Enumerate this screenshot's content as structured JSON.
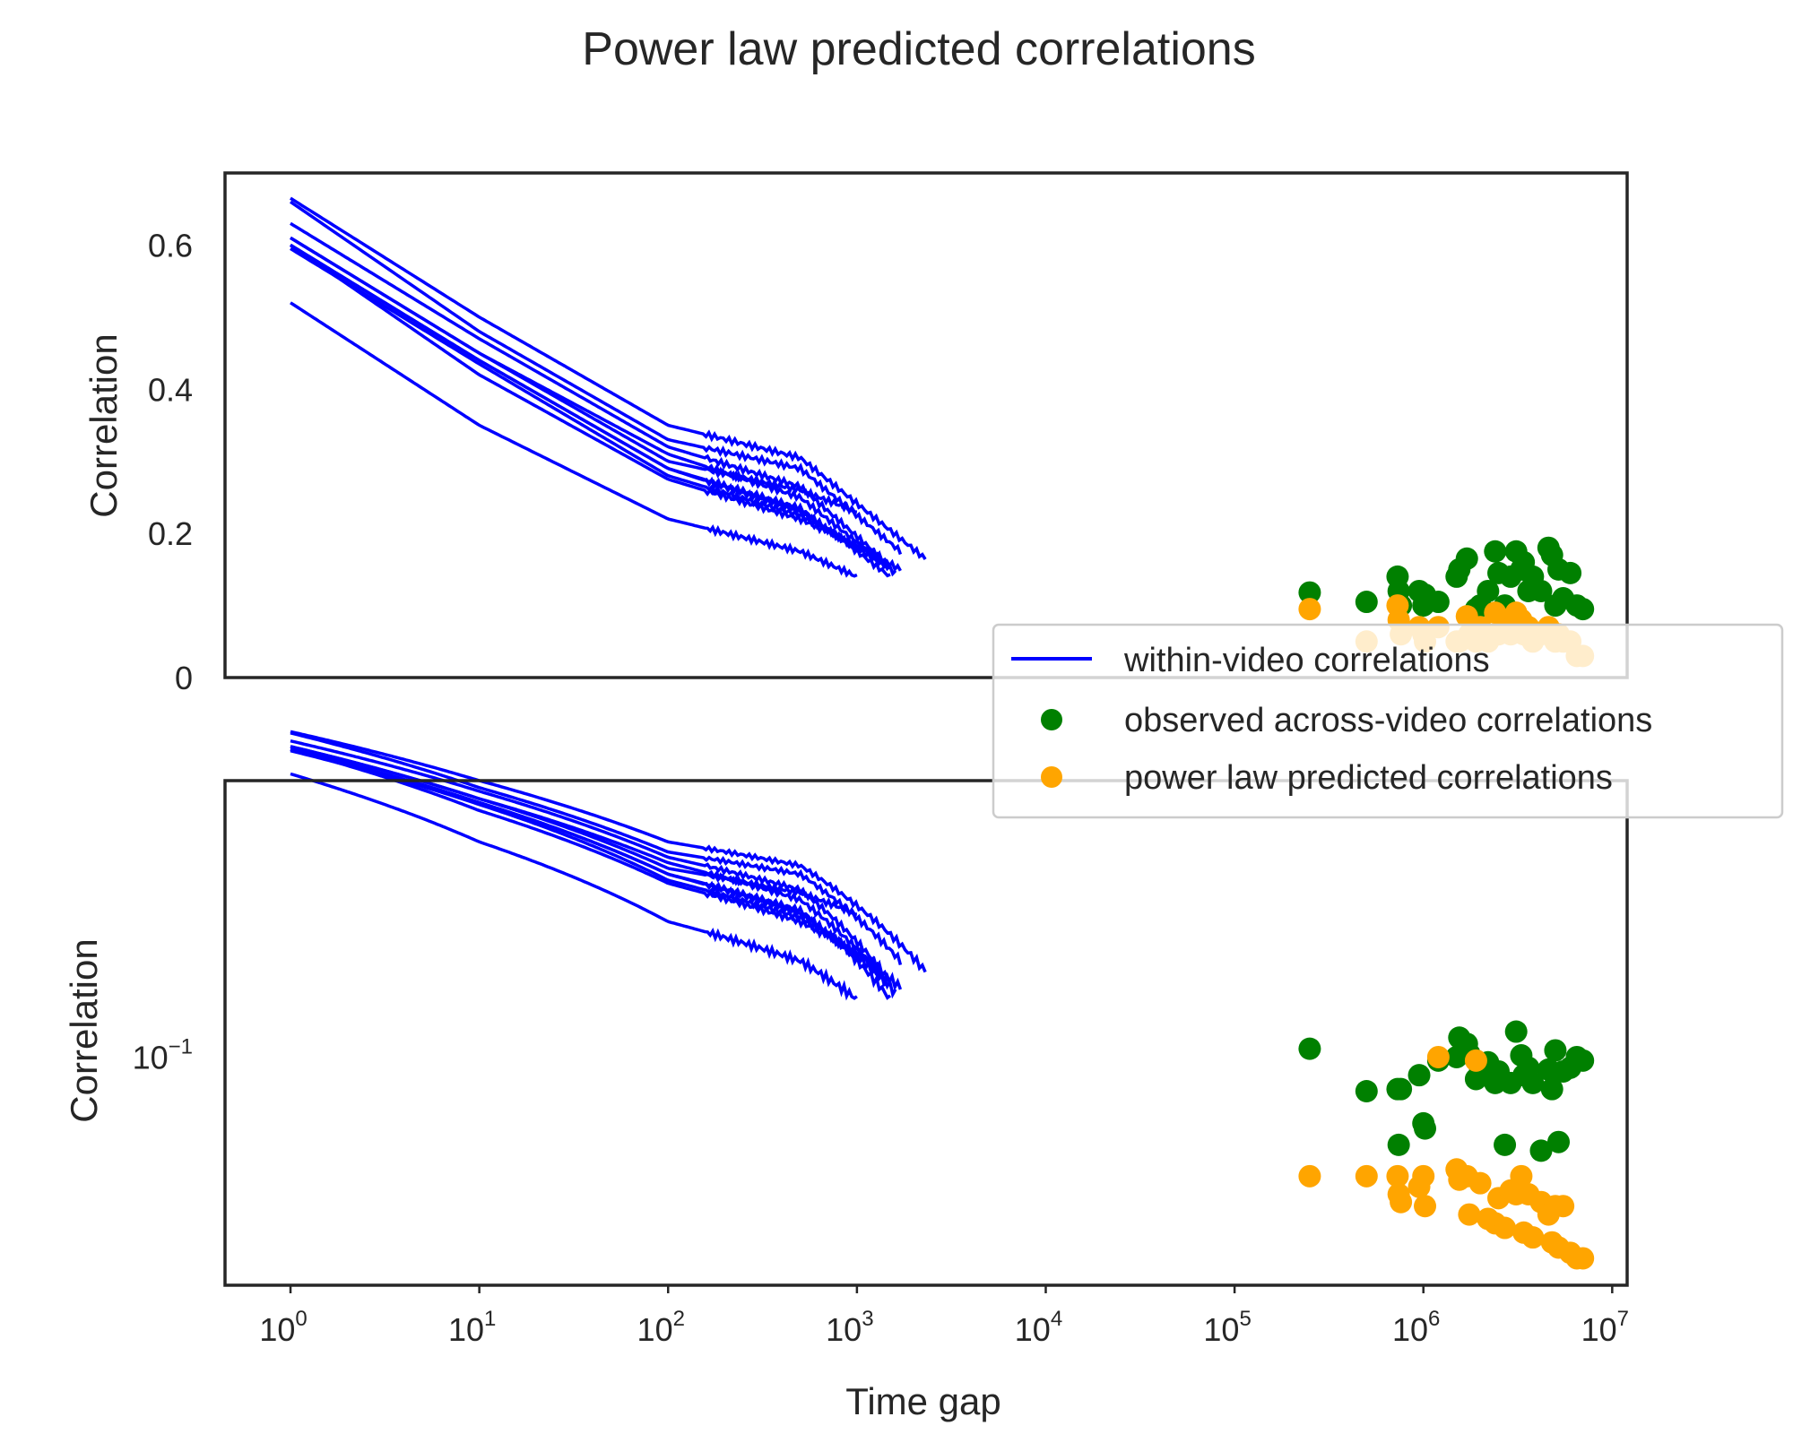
{
  "chart_data": {
    "type": "line",
    "title": "Power law predicted correlations",
    "xlabel": "Time gap",
    "x_scale": "log",
    "xlim": [
      0.45,
      12000000
    ],
    "x_ticks": [
      1,
      10,
      100,
      1000,
      10000,
      100000,
      1000000,
      10000000
    ],
    "x_tick_labels": [
      {
        "base": "10",
        "exp": "0"
      },
      {
        "base": "10",
        "exp": "1"
      },
      {
        "base": "10",
        "exp": "2"
      },
      {
        "base": "10",
        "exp": "3"
      },
      {
        "base": "10",
        "exp": "4"
      },
      {
        "base": "10",
        "exp": "5"
      },
      {
        "base": "10",
        "exp": "6"
      },
      {
        "base": "10",
        "exp": "7"
      }
    ],
    "legend": {
      "placement": "right",
      "entries": [
        {
          "label": "within-video correlations",
          "kind": "line",
          "color": "#0000ff"
        },
        {
          "label": "observed across-video correlations",
          "kind": "dot",
          "color": "#008000"
        },
        {
          "label": "power law predicted correlations",
          "kind": "dot",
          "color": "#ffa500"
        }
      ]
    },
    "colors": {
      "within": "#0000ff",
      "observed": "#008000",
      "predicted": "#ffa500"
    },
    "panels": [
      {
        "ylabel": "Correlation",
        "y_scale": "linear",
        "ylim": [
          0,
          0.7
        ],
        "y_ticks": [
          0,
          0.2,
          0.4,
          0.6
        ],
        "y_tick_labels": [
          "0",
          "0.2",
          "0.4",
          "0.6"
        ]
      },
      {
        "ylabel": "Correlation",
        "y_scale": "log",
        "ylim": [
          0.0265,
          0.5
        ],
        "y_ticks": [
          0.1
        ],
        "y_tick_labels": [
          {
            "base": "10",
            "exp": "−1"
          }
        ]
      }
    ],
    "within_video_series": [
      {
        "x_max": 2300,
        "values": [
          [
            1,
            0.665
          ],
          [
            10,
            0.5
          ],
          [
            100,
            0.35
          ],
          [
            500,
            0.305
          ],
          [
            2300,
            0.165
          ]
        ]
      },
      {
        "x_max": 1700,
        "values": [
          [
            1,
            0.66
          ],
          [
            10,
            0.48
          ],
          [
            100,
            0.33
          ],
          [
            500,
            0.29
          ],
          [
            1700,
            0.175
          ]
        ]
      },
      {
        "x_max": 1500,
        "values": [
          [
            1,
            0.63
          ],
          [
            10,
            0.47
          ],
          [
            100,
            0.32
          ],
          [
            500,
            0.265
          ],
          [
            1500,
            0.155
          ]
        ]
      },
      {
        "x_max": 1600,
        "values": [
          [
            1,
            0.61
          ],
          [
            10,
            0.45
          ],
          [
            100,
            0.31
          ],
          [
            500,
            0.25
          ],
          [
            1600,
            0.145
          ]
        ]
      },
      {
        "x_max": 1500,
        "values": [
          [
            1,
            0.6
          ],
          [
            10,
            0.44
          ],
          [
            100,
            0.29
          ],
          [
            500,
            0.235
          ],
          [
            1500,
            0.14
          ]
        ]
      },
      {
        "x_max": 1700,
        "values": [
          [
            1,
            0.595
          ],
          [
            10,
            0.435
          ],
          [
            100,
            0.28
          ],
          [
            500,
            0.225
          ],
          [
            1700,
            0.15
          ]
        ]
      },
      {
        "x_max": 1400,
        "values": [
          [
            1,
            0.6
          ],
          [
            10,
            0.44
          ],
          [
            100,
            0.29
          ],
          [
            500,
            0.23
          ],
          [
            1400,
            0.155
          ]
        ]
      },
      {
        "x_max": 1000,
        "values": [
          [
            1,
            0.61
          ],
          [
            10,
            0.45
          ],
          [
            100,
            0.3
          ],
          [
            500,
            0.26
          ],
          [
            1000,
            0.23
          ]
        ]
      },
      {
        "x_max": 1300,
        "values": [
          [
            1,
            0.6
          ],
          [
            10,
            0.42
          ],
          [
            100,
            0.275
          ],
          [
            500,
            0.22
          ],
          [
            1300,
            0.17
          ]
        ]
      },
      {
        "x_max": 1000,
        "values": [
          [
            1,
            0.52
          ],
          [
            10,
            0.35
          ],
          [
            100,
            0.22
          ],
          [
            500,
            0.175
          ],
          [
            1000,
            0.14
          ]
        ]
      }
    ],
    "across_video_points": [
      {
        "x": 250000,
        "observed_top": 0.118,
        "observed_bottom": 0.105,
        "predicted_top": 0.095,
        "predicted_bottom": 0.05
      },
      {
        "x": 500000,
        "observed_top": 0.105,
        "observed_bottom": 0.082,
        "predicted_top": 0.05,
        "predicted_bottom": 0.05
      },
      {
        "x": 730000,
        "observed_top": 0.14,
        "observed_bottom": 0.083,
        "predicted_top": 0.1,
        "predicted_bottom": 0.05
      },
      {
        "x": 740000,
        "observed_top": 0.12,
        "observed_bottom": 0.06,
        "predicted_top": 0.08,
        "predicted_bottom": 0.045
      },
      {
        "x": 760000,
        "observed_top": 0.1,
        "observed_bottom": 0.083,
        "predicted_top": 0.06,
        "predicted_bottom": 0.043
      },
      {
        "x": 950000,
        "observed_top": 0.12,
        "observed_bottom": 0.09,
        "predicted_top": 0.07,
        "predicted_bottom": 0.047
      },
      {
        "x": 1000000,
        "observed_top": 0.1,
        "observed_bottom": 0.068,
        "predicted_top": 0.06,
        "predicted_bottom": 0.05
      },
      {
        "x": 1020000,
        "observed_top": 0.115,
        "observed_bottom": 0.066,
        "predicted_top": 0.05,
        "predicted_bottom": 0.042
      },
      {
        "x": 1200000,
        "observed_top": 0.105,
        "observed_bottom": 0.098,
        "predicted_top": 0.07,
        "predicted_bottom": 0.1
      },
      {
        "x": 1500000,
        "observed_top": 0.14,
        "observed_bottom": 0.1,
        "predicted_top": 0.05,
        "predicted_bottom": 0.052
      },
      {
        "x": 1550000,
        "observed_top": 0.15,
        "observed_bottom": 0.112,
        "predicted_top": 0.05,
        "predicted_bottom": 0.049
      },
      {
        "x": 1700000,
        "observed_top": 0.165,
        "observed_bottom": 0.108,
        "predicted_top": 0.085,
        "predicted_bottom": 0.05
      },
      {
        "x": 1750000,
        "observed_top": 0.085,
        "observed_bottom": 0.102,
        "predicted_top": 0.06,
        "predicted_bottom": 0.04
      },
      {
        "x": 1900000,
        "observed_top": 0.095,
        "observed_bottom": 0.088,
        "predicted_top": 0.05,
        "predicted_bottom": 0.098
      },
      {
        "x": 2000000,
        "observed_top": 0.1,
        "observed_bottom": 0.093,
        "predicted_top": 0.07,
        "predicted_bottom": 0.048
      },
      {
        "x": 2200000,
        "observed_top": 0.12,
        "observed_bottom": 0.097,
        "predicted_top": 0.05,
        "predicted_bottom": 0.039
      },
      {
        "x": 2400000,
        "observed_top": 0.175,
        "observed_bottom": 0.086,
        "predicted_top": 0.09,
        "predicted_bottom": 0.038
      },
      {
        "x": 2500000,
        "observed_top": 0.145,
        "observed_bottom": 0.092,
        "predicted_top": 0.06,
        "predicted_bottom": 0.044
      },
      {
        "x": 2700000,
        "observed_top": 0.1,
        "observed_bottom": 0.06,
        "predicted_top": 0.08,
        "predicted_bottom": 0.037
      },
      {
        "x": 2900000,
        "observed_top": 0.14,
        "observed_bottom": 0.086,
        "predicted_top": 0.06,
        "predicted_bottom": 0.046
      },
      {
        "x": 3100000,
        "observed_top": 0.175,
        "observed_bottom": 0.116,
        "predicted_top": 0.09,
        "predicted_bottom": 0.045
      },
      {
        "x": 3300000,
        "observed_top": 0.15,
        "observed_bottom": 0.101,
        "predicted_top": 0.08,
        "predicted_bottom": 0.05
      },
      {
        "x": 3400000,
        "observed_top": 0.16,
        "observed_bottom": 0.09,
        "predicted_top": 0.06,
        "predicted_bottom": 0.036
      },
      {
        "x": 3600000,
        "observed_top": 0.12,
        "observed_bottom": 0.094,
        "predicted_top": 0.07,
        "predicted_bottom": 0.045
      },
      {
        "x": 3800000,
        "observed_top": 0.14,
        "observed_bottom": 0.086,
        "predicted_top": 0.05,
        "predicted_bottom": 0.035
      },
      {
        "x": 4200000,
        "observed_top": 0.12,
        "observed_bottom": 0.058,
        "predicted_top": 0.06,
        "predicted_bottom": 0.043
      },
      {
        "x": 4600000,
        "observed_top": 0.18,
        "observed_bottom": 0.093,
        "predicted_top": 0.07,
        "predicted_bottom": 0.04
      },
      {
        "x": 4800000,
        "observed_top": 0.17,
        "observed_bottom": 0.083,
        "predicted_top": 0.06,
        "predicted_bottom": 0.034
      },
      {
        "x": 5000000,
        "observed_top": 0.1,
        "observed_bottom": 0.104,
        "predicted_top": 0.05,
        "predicted_bottom": 0.042
      },
      {
        "x": 5200000,
        "observed_top": 0.15,
        "observed_bottom": 0.061,
        "predicted_top": 0.06,
        "predicted_bottom": 0.033
      },
      {
        "x": 5500000,
        "observed_top": 0.11,
        "observed_bottom": 0.092,
        "predicted_top": 0.05,
        "predicted_bottom": 0.042
      },
      {
        "x": 6000000,
        "observed_top": 0.145,
        "observed_bottom": 0.094,
        "predicted_top": 0.05,
        "predicted_bottom": 0.032
      },
      {
        "x": 6500000,
        "observed_top": 0.1,
        "observed_bottom": 0.1,
        "predicted_top": 0.03,
        "predicted_bottom": 0.031
      },
      {
        "x": 7000000,
        "observed_top": 0.095,
        "observed_bottom": 0.098,
        "predicted_top": 0.03,
        "predicted_bottom": 0.031
      }
    ]
  }
}
